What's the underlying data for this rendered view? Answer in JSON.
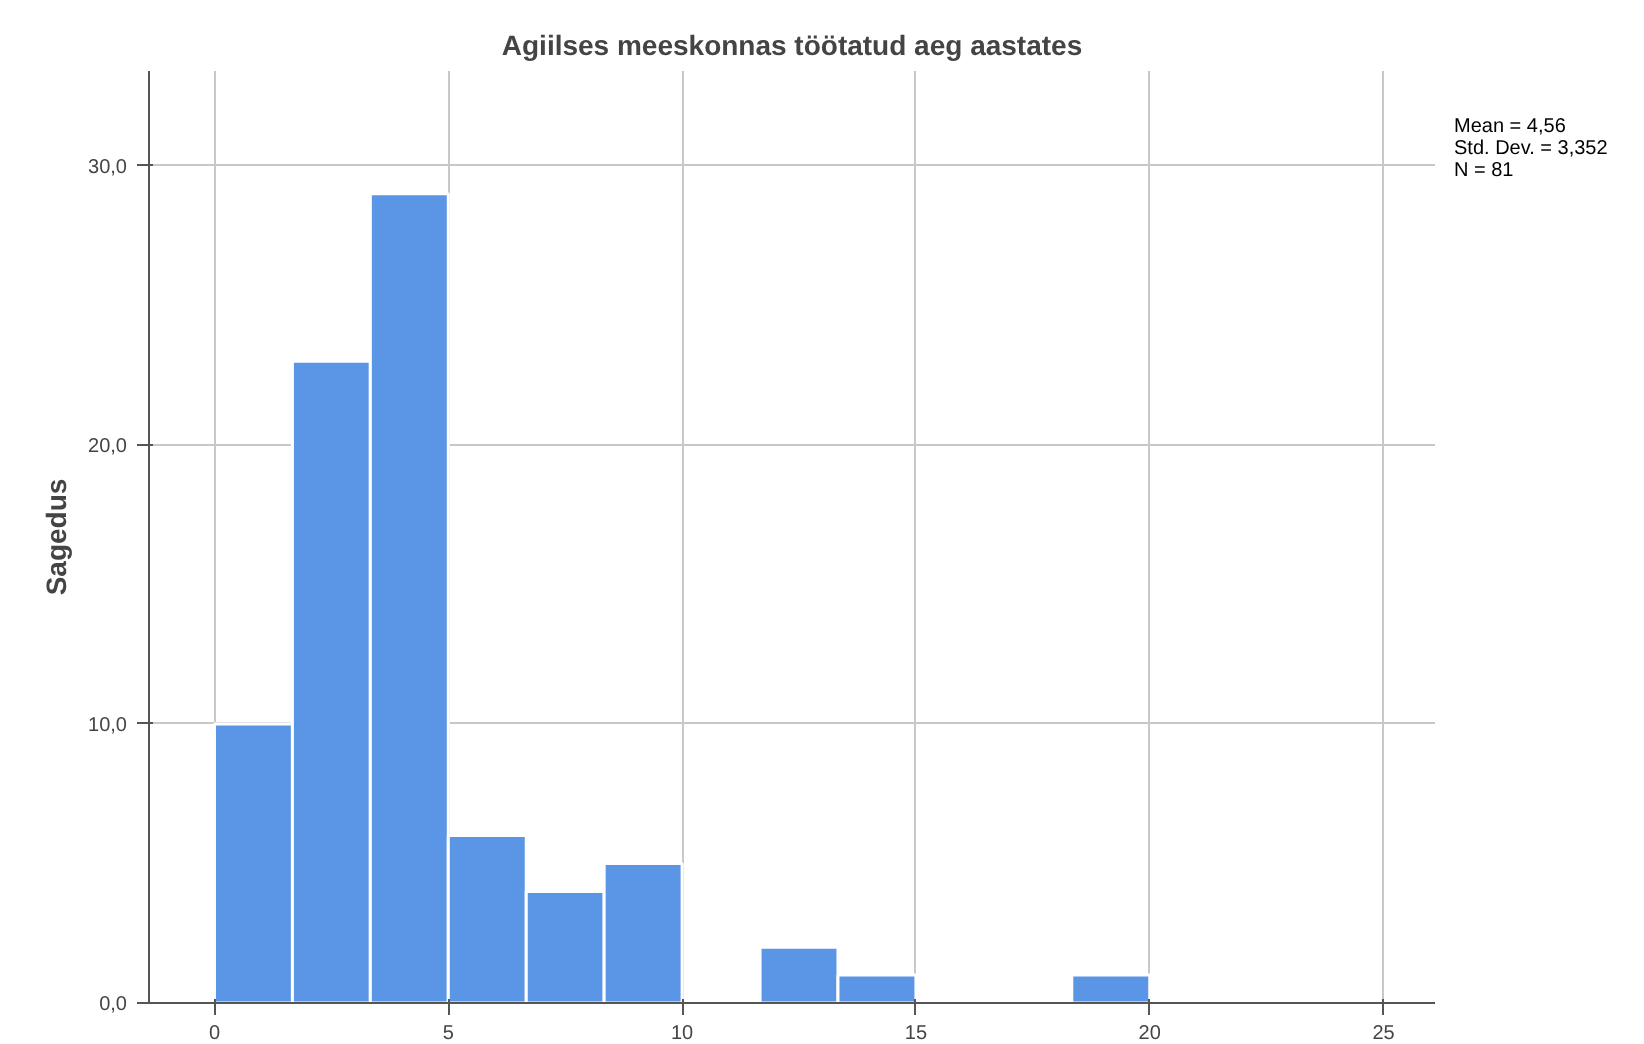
{
  "chart_data": {
    "type": "histogram",
    "title": "Agiilses meeskonnas töötatud aeg aastates",
    "ylabel": "Sagedus",
    "bins": [
      0,
      1.667,
      3.333,
      5,
      6.667,
      8.333,
      10,
      11.667,
      13.333,
      15,
      16.667,
      18.333,
      20
    ],
    "values": [
      10,
      23,
      29,
      6,
      4,
      5,
      0,
      2,
      1,
      0,
      0,
      1
    ],
    "color": "#5b95e5",
    "xlim": [
      -1.4,
      26.1
    ],
    "ylim": [
      0,
      33.4
    ],
    "xticks": [
      0,
      5,
      10,
      15,
      20,
      25
    ],
    "yticks": [
      {
        "value": 0,
        "label": "0,0"
      },
      {
        "value": 10,
        "label": "10,0"
      },
      {
        "value": 20,
        "label": "20,0"
      },
      {
        "value": 30,
        "label": "30,0"
      }
    ],
    "grid": true,
    "annotations": [
      "Mean = 4,56",
      "Std. Dev. = 3,352",
      "N = 81"
    ]
  }
}
